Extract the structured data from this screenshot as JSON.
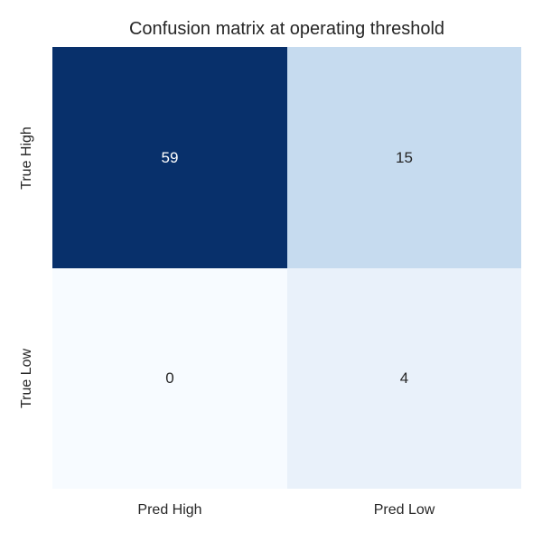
{
  "chart_data": {
    "type": "heatmap",
    "title": "Confusion matrix at operating threshold",
    "x_categories": [
      "Pred High",
      "Pred Low"
    ],
    "y_categories": [
      "True High",
      "True Low"
    ],
    "values": [
      [
        59,
        15
      ],
      [
        0,
        4
      ]
    ],
    "colormap": "Blues",
    "cell_colors": [
      [
        "#08306b",
        "#c6dbef"
      ],
      [
        "#f7fbff",
        "#e9f1fa"
      ]
    ],
    "cell_text_colors": [
      [
        "#ffffff",
        "#262626"
      ],
      [
        "#262626",
        "#262626"
      ]
    ],
    "value_min": 0,
    "value_max": 59,
    "colorbar": false,
    "grid": false,
    "legend_position": "none",
    "background_color": "#ffffff",
    "text_color": "#262626"
  }
}
